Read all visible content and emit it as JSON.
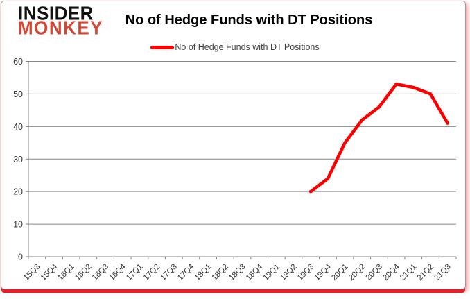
{
  "logo": {
    "line1": "INSIDER",
    "line2": "MONKEY"
  },
  "header": {
    "title": "No of Hedge Funds with DT Positions"
  },
  "legend": {
    "label": "No of Hedge Funds with DT Positions",
    "swatch_color": "#ff0000"
  },
  "colors": {
    "series_line": "#ff0000",
    "grid": "#868686",
    "axis": "#808080",
    "tick_label": "#333333",
    "logo_accent": "#d14836",
    "frame_shadow": "#ed1c24"
  },
  "chart_data": {
    "type": "line",
    "title": "No of Hedge Funds with DT Positions",
    "categories": [
      "15Q3",
      "15Q4",
      "16Q1",
      "16Q2",
      "16Q3",
      "16Q4",
      "17Q1",
      "17Q2",
      "17Q3",
      "17Q4",
      "18Q1",
      "18Q2",
      "18Q3",
      "18Q4",
      "19Q1",
      "19Q2",
      "19Q3",
      "19Q4",
      "20Q1",
      "20Q2",
      "20Q3",
      "20Q4",
      "21Q1",
      "21Q2",
      "21Q3"
    ],
    "series": [
      {
        "name": "No of Hedge Funds with DT Positions",
        "color": "#ff0000",
        "values": [
          null,
          null,
          null,
          null,
          null,
          null,
          null,
          null,
          null,
          null,
          null,
          null,
          null,
          null,
          null,
          null,
          20,
          24,
          35,
          42,
          46,
          53,
          52,
          50,
          41
        ]
      }
    ],
    "xlabel": "",
    "ylabel": "",
    "ylim": [
      0,
      60
    ],
    "yticks": [
      0,
      10,
      20,
      30,
      40,
      50,
      60
    ],
    "grid": "horizontal",
    "legend_position": "top-center"
  }
}
